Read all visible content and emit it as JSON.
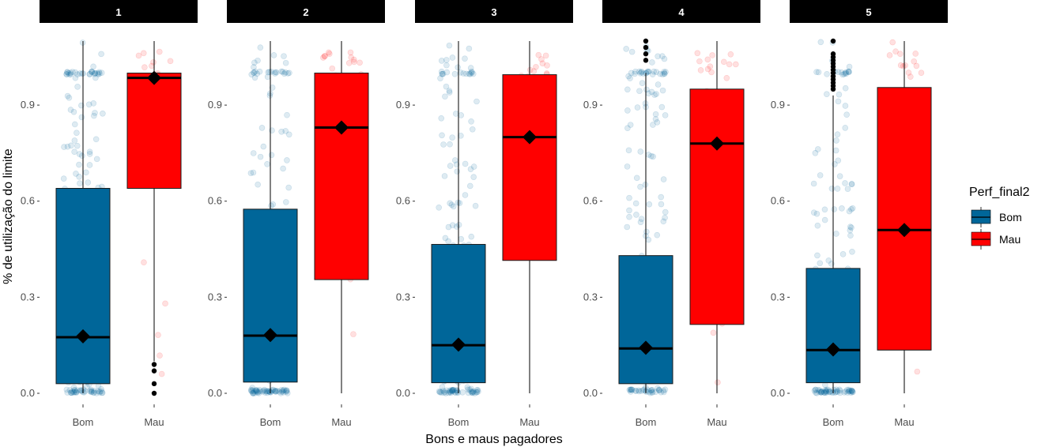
{
  "chart_data": {
    "type": "boxplot",
    "xlabel": "Bons e maus pagadores",
    "ylabel": "% de utilização do limite",
    "ylim": [
      0,
      1.1
    ],
    "yticks": [
      0.0,
      0.3,
      0.6,
      0.9
    ],
    "ytick_labels": [
      "0.0",
      "0.3",
      "0.6",
      "0.9"
    ],
    "categories": [
      "Bom",
      "Mau"
    ],
    "legend": {
      "title": "Perf_final2",
      "placement": "right",
      "entries": [
        {
          "label": "Bom",
          "color": "#006699"
        },
        {
          "label": "Mau",
          "color": "#ff0000"
        }
      ]
    },
    "grid": false,
    "panels": [
      {
        "label": "1",
        "boxes": [
          {
            "group": "Bom",
            "q1": 0.03,
            "median": 0.175,
            "q3": 0.64,
            "whisker_low": 0.0,
            "whisker_high": 1.1,
            "mean": 0.178,
            "outliers": []
          },
          {
            "group": "Mau",
            "q1": 0.64,
            "median": 0.985,
            "q3": 1.0,
            "whisker_low": 0.1,
            "whisker_high": 1.1,
            "mean": 0.985,
            "outliers": [
              0.0,
              0.03,
              0.07,
              0.09
            ]
          }
        ]
      },
      {
        "label": "2",
        "boxes": [
          {
            "group": "Bom",
            "q1": 0.035,
            "median": 0.18,
            "q3": 0.575,
            "whisker_low": 0.0,
            "whisker_high": 1.1,
            "mean": 0.182,
            "outliers": []
          },
          {
            "group": "Mau",
            "q1": 0.355,
            "median": 0.83,
            "q3": 1.0,
            "whisker_low": 0.0,
            "whisker_high": 1.1,
            "mean": 0.83,
            "outliers": []
          }
        ]
      },
      {
        "label": "3",
        "boxes": [
          {
            "group": "Bom",
            "q1": 0.033,
            "median": 0.15,
            "q3": 0.465,
            "whisker_low": 0.0,
            "whisker_high": 1.1,
            "mean": 0.152,
            "outliers": []
          },
          {
            "group": "Mau",
            "q1": 0.415,
            "median": 0.8,
            "q3": 0.995,
            "whisker_low": 0.0,
            "whisker_high": 1.1,
            "mean": 0.8,
            "outliers": []
          }
        ]
      },
      {
        "label": "4",
        "boxes": [
          {
            "group": "Bom",
            "q1": 0.03,
            "median": 0.14,
            "q3": 0.43,
            "whisker_low": 0.0,
            "whisker_high": 1.0,
            "mean": 0.142,
            "outliers": [
              1.04,
              1.06,
              1.08,
              1.1
            ]
          },
          {
            "group": "Mau",
            "q1": 0.215,
            "median": 0.78,
            "q3": 0.95,
            "whisker_low": 0.0,
            "whisker_high": 1.1,
            "mean": 0.78,
            "outliers": []
          }
        ]
      },
      {
        "label": "5",
        "boxes": [
          {
            "group": "Bom",
            "q1": 0.033,
            "median": 0.135,
            "q3": 0.39,
            "whisker_low": 0.0,
            "whisker_high": 0.93,
            "mean": 0.137,
            "outliers": [
              0.95,
              0.96,
              0.97,
              0.98,
              0.99,
              1.0,
              1.01,
              1.02,
              1.03,
              1.04,
              1.05,
              1.06,
              1.1
            ]
          },
          {
            "group": "Mau",
            "q1": 0.135,
            "median": 0.51,
            "q3": 0.955,
            "whisker_low": 0.0,
            "whisker_high": 1.1,
            "mean": 0.51,
            "outliers": []
          }
        ]
      }
    ]
  }
}
